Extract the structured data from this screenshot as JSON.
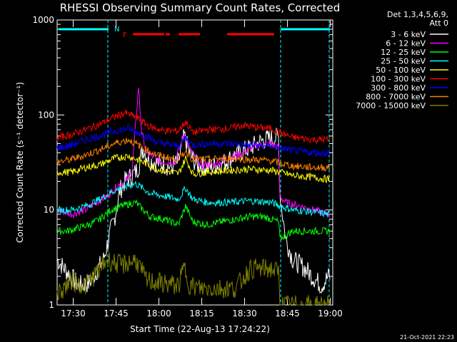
{
  "chart_data": {
    "type": "line",
    "title": "RHESSI Observing Summary Count Rates, Corrected",
    "xlabel": "Start Time (22-Aug-13 17:24:22)",
    "ylabel": "Corrected Count Rate (s⁻¹ detector⁻¹)",
    "yscale": "log",
    "ylim": [
      1,
      1000
    ],
    "xlim": [
      "17:24:22",
      "19:01"
    ],
    "x_ticks": [
      "17:30",
      "17:45",
      "18:00",
      "18:15",
      "18:30",
      "18:45",
      "19:00"
    ],
    "y_ticks": [
      "1",
      "10",
      "100",
      "1000"
    ],
    "legend_header": [
      "Det 1,3,4,5,6,9,",
      "Att 0"
    ],
    "footer_date": "21-Oct-2021 22:23",
    "flags": {
      "night_label": "N",
      "flare_label": "F"
    },
    "series": [
      {
        "name": "3 - 6 keV",
        "color": "#ffffff",
        "points": [
          [
            0,
            3
          ],
          [
            30,
            1.6
          ],
          [
            45,
            1.7
          ],
          [
            65,
            3
          ],
          [
            75,
            6
          ],
          [
            80,
            8
          ],
          [
            85,
            12
          ],
          [
            88,
            16
          ],
          [
            95,
            20
          ],
          [
            110,
            25
          ],
          [
            115,
            30
          ],
          [
            120,
            45
          ],
          [
            125,
            38
          ],
          [
            130,
            33
          ],
          [
            150,
            30
          ],
          [
            160,
            28
          ],
          [
            170,
            32
          ],
          [
            178,
            60
          ],
          [
            185,
            40
          ],
          [
            195,
            30
          ],
          [
            215,
            28
          ],
          [
            235,
            32
          ],
          [
            250,
            38
          ],
          [
            270,
            45
          ],
          [
            290,
            55
          ],
          [
            310,
            58
          ],
          [
            312,
            15
          ],
          [
            320,
            5
          ],
          [
            330,
            3
          ],
          [
            345,
            2.5
          ],
          [
            370,
            1.6
          ],
          [
            380,
            2
          ]
        ]
      },
      {
        "name": "6 - 12 keV",
        "color": "#ff00ff",
        "points": [
          [
            0,
            10
          ],
          [
            20,
            9
          ],
          [
            40,
            10
          ],
          [
            55,
            12
          ],
          [
            70,
            14
          ],
          [
            85,
            18
          ],
          [
            95,
            20
          ],
          [
            105,
            25
          ],
          [
            110,
            80
          ],
          [
            114,
            200
          ],
          [
            118,
            70
          ],
          [
            125,
            40
          ],
          [
            145,
            32
          ],
          [
            165,
            32
          ],
          [
            178,
            65
          ],
          [
            185,
            45
          ],
          [
            200,
            30
          ],
          [
            220,
            30
          ],
          [
            240,
            35
          ],
          [
            260,
            40
          ],
          [
            280,
            48
          ],
          [
            300,
            50
          ],
          [
            310,
            45
          ],
          [
            312,
            14
          ],
          [
            320,
            12
          ],
          [
            340,
            11
          ],
          [
            360,
            10
          ],
          [
            380,
            9
          ]
        ]
      },
      {
        "name": "12 - 25 keV",
        "color": "#00ff00",
        "points": [
          [
            0,
            6
          ],
          [
            15,
            6
          ],
          [
            30,
            6.5
          ],
          [
            45,
            7
          ],
          [
            60,
            8
          ],
          [
            75,
            10
          ],
          [
            90,
            11
          ],
          [
            110,
            12
          ],
          [
            130,
            8.5
          ],
          [
            150,
            8
          ],
          [
            170,
            7
          ],
          [
            180,
            11
          ],
          [
            190,
            7.5
          ],
          [
            210,
            7
          ],
          [
            230,
            7.5
          ],
          [
            250,
            8
          ],
          [
            270,
            8.5
          ],
          [
            290,
            8.5
          ],
          [
            310,
            7.5
          ],
          [
            312,
            5
          ],
          [
            330,
            6
          ],
          [
            360,
            6
          ],
          [
            380,
            6
          ]
        ]
      },
      {
        "name": "25 - 50 keV",
        "color": "#00ffff",
        "points": [
          [
            0,
            10
          ],
          [
            20,
            10
          ],
          [
            40,
            11
          ],
          [
            60,
            13
          ],
          [
            80,
            16
          ],
          [
            100,
            18
          ],
          [
            110,
            19
          ],
          [
            130,
            15
          ],
          [
            150,
            14
          ],
          [
            170,
            13
          ],
          [
            180,
            17
          ],
          [
            190,
            13
          ],
          [
            210,
            12
          ],
          [
            240,
            12
          ],
          [
            270,
            12.5
          ],
          [
            300,
            12
          ],
          [
            312,
            11
          ],
          [
            330,
            10
          ],
          [
            360,
            9.5
          ],
          [
            380,
            9
          ]
        ]
      },
      {
        "name": "50 - 100 keV",
        "color": "#ffff00",
        "points": [
          [
            0,
            25
          ],
          [
            20,
            25
          ],
          [
            40,
            28
          ],
          [
            60,
            30
          ],
          [
            80,
            35
          ],
          [
            100,
            37
          ],
          [
            120,
            32
          ],
          [
            140,
            27
          ],
          [
            160,
            25
          ],
          [
            170,
            24
          ],
          [
            180,
            35
          ],
          [
            190,
            24
          ],
          [
            210,
            25
          ],
          [
            240,
            26
          ],
          [
            270,
            27
          ],
          [
            300,
            26
          ],
          [
            312,
            25
          ],
          [
            330,
            23
          ],
          [
            360,
            22
          ],
          [
            380,
            21
          ]
        ]
      },
      {
        "name": "100 - 300 keV",
        "color": "#ff0000",
        "points": [
          [
            0,
            58
          ],
          [
            20,
            62
          ],
          [
            40,
            70
          ],
          [
            60,
            80
          ],
          [
            80,
            95
          ],
          [
            95,
            105
          ],
          [
            110,
            95
          ],
          [
            130,
            75
          ],
          [
            150,
            68
          ],
          [
            170,
            68
          ],
          [
            180,
            85
          ],
          [
            190,
            65
          ],
          [
            210,
            70
          ],
          [
            240,
            72
          ],
          [
            260,
            78
          ],
          [
            280,
            74
          ],
          [
            300,
            72
          ],
          [
            312,
            65
          ],
          [
            330,
            58
          ],
          [
            360,
            55
          ],
          [
            380,
            55
          ]
        ]
      },
      {
        "name": "300 - 800 keV",
        "color": "#0000ff",
        "points": [
          [
            0,
            45
          ],
          [
            20,
            48
          ],
          [
            40,
            55
          ],
          [
            60,
            60
          ],
          [
            80,
            68
          ],
          [
            100,
            72
          ],
          [
            120,
            62
          ],
          [
            140,
            52
          ],
          [
            160,
            48
          ],
          [
            170,
            47
          ],
          [
            180,
            58
          ],
          [
            190,
            48
          ],
          [
            210,
            50
          ],
          [
            240,
            50
          ],
          [
            270,
            48
          ],
          [
            300,
            47
          ],
          [
            312,
            45
          ],
          [
            330,
            42
          ],
          [
            360,
            40
          ],
          [
            380,
            40
          ]
        ]
      },
      {
        "name": "800 - 7000 keV",
        "color": "#ff8000",
        "points": [
          [
            0,
            32
          ],
          [
            20,
            34
          ],
          [
            40,
            38
          ],
          [
            60,
            43
          ],
          [
            80,
            50
          ],
          [
            100,
            55
          ],
          [
            120,
            45
          ],
          [
            140,
            38
          ],
          [
            160,
            35
          ],
          [
            170,
            34
          ],
          [
            180,
            42
          ],
          [
            190,
            34
          ],
          [
            210,
            34
          ],
          [
            240,
            35
          ],
          [
            270,
            34
          ],
          [
            300,
            33
          ],
          [
            312,
            31
          ],
          [
            330,
            29
          ],
          [
            360,
            28
          ],
          [
            380,
            28
          ]
        ]
      },
      {
        "name": "7000 - 15000 keV",
        "color": "#808000",
        "points": [
          [
            0,
            1.3
          ],
          [
            20,
            1.8
          ],
          [
            40,
            1.6
          ],
          [
            60,
            2.4
          ],
          [
            70,
            3
          ],
          [
            90,
            2.6
          ],
          [
            110,
            3
          ],
          [
            125,
            1.8
          ],
          [
            170,
            1.6
          ],
          [
            178,
            2.5
          ],
          [
            186,
            1.6
          ],
          [
            200,
            1.5
          ],
          [
            250,
            1.5
          ],
          [
            270,
            2.4
          ],
          [
            300,
            2.4
          ],
          [
            310,
            2.2
          ],
          [
            312,
            1
          ],
          [
            380,
            1
          ]
        ]
      }
    ]
  }
}
